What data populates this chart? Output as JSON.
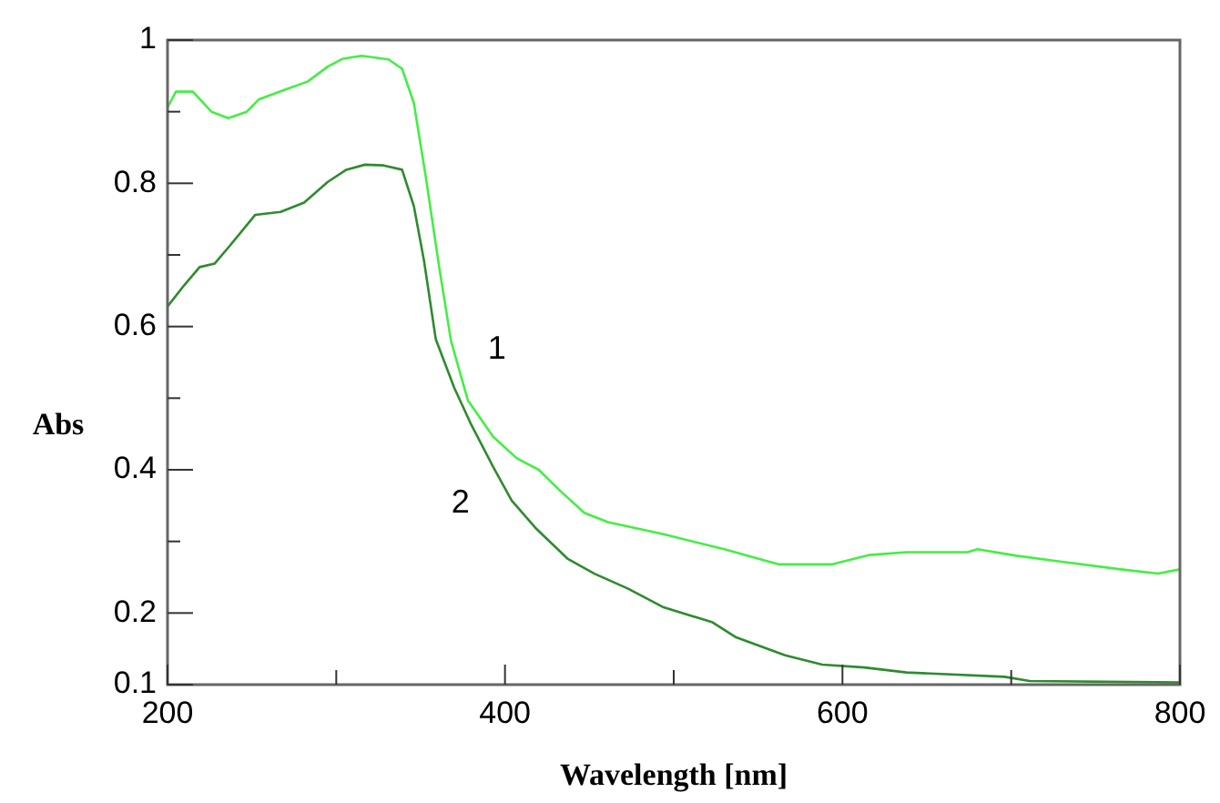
{
  "chart_data": {
    "type": "line",
    "xlabel": "Wavelength [nm]",
    "ylabel": "Abs",
    "xlim": [
      200,
      800
    ],
    "xticks": [
      200,
      {
        "value": 300,
        "label": null
      },
      400,
      {
        "value": 500,
        "label": null
      },
      600,
      {
        "value": 700,
        "label": null
      },
      800
    ],
    "ylim": [
      0.1,
      1
    ],
    "yticks": [
      0.1,
      0.2,
      {
        "value": 0.3,
        "label": null
      },
      0.4,
      {
        "value": 0.5,
        "label": null
      },
      0.6,
      {
        "value": 0.7,
        "label": null
      },
      0.8,
      {
        "value": 0.9,
        "label": null
      },
      1
    ],
    "grid": false,
    "legend": false,
    "marker": "none",
    "line_style": "solid",
    "series": [
      {
        "name": "1",
        "color": "#44ee44",
        "x": [
          200,
          205,
          215,
          226,
          236,
          247,
          254,
          270,
          283,
          295,
          304,
          315,
          331,
          339,
          346,
          353,
          361,
          368,
          378,
          393,
          407,
          420,
          433,
          447,
          461,
          494,
          530,
          562,
          594,
          616,
          638,
          674,
          680,
          703,
          729,
          765,
          787,
          800
        ],
        "values": [
          0.906,
          0.928,
          0.928,
          0.9,
          0.891,
          0.9,
          0.917,
          0.931,
          0.942,
          0.963,
          0.974,
          0.978,
          0.973,
          0.96,
          0.912,
          0.81,
          0.683,
          0.58,
          0.497,
          0.446,
          0.416,
          0.4,
          0.37,
          0.34,
          0.327,
          0.31,
          0.289,
          0.268,
          0.268,
          0.281,
          0.285,
          0.285,
          0.289,
          0.28,
          0.272,
          0.261,
          0.255,
          0.261
        ]
      },
      {
        "name": "2",
        "color": "#2e8b2e",
        "x": [
          200,
          210,
          219,
          228,
          237,
          252,
          267,
          281,
          295,
          306,
          317,
          328,
          339,
          346,
          352,
          359,
          370,
          380,
          393,
          404,
          418,
          437,
          453,
          473,
          494,
          523,
          537,
          566,
          588,
          613,
          638,
          696,
          711,
          800
        ],
        "values": [
          0.628,
          0.658,
          0.683,
          0.688,
          0.713,
          0.756,
          0.76,
          0.773,
          0.802,
          0.819,
          0.826,
          0.825,
          0.819,
          0.768,
          0.692,
          0.582,
          0.514,
          0.463,
          0.404,
          0.357,
          0.319,
          0.276,
          0.255,
          0.234,
          0.208,
          0.187,
          0.166,
          0.141,
          0.128,
          0.124,
          0.117,
          0.111,
          0.105,
          0.103
        ]
      }
    ]
  }
}
